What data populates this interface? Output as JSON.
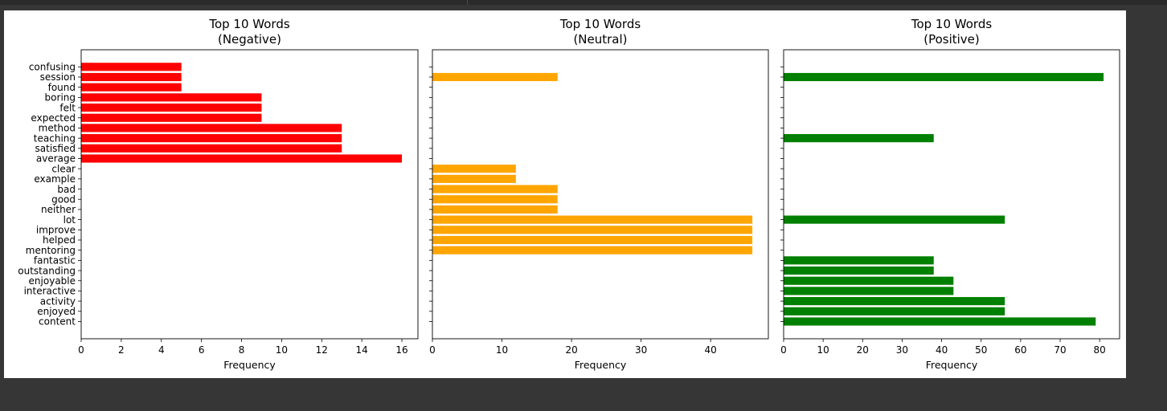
{
  "chart_data": [
    {
      "type": "bar",
      "orientation": "horizontal",
      "title": "Top 10 Words\n(Negative)",
      "xlabel": "Frequency",
      "color": "#ff0000",
      "xlim": [
        0,
        16.8
      ],
      "xticks": [
        0,
        2,
        4,
        6,
        8,
        10,
        12,
        14,
        16
      ],
      "categories": [
        "content",
        "enjoyed",
        "activity",
        "interactive",
        "enjoyable",
        "outstanding",
        "fantastic",
        "mentoring",
        "helped",
        "improve",
        "lot",
        "neither",
        "good",
        "bad",
        "example",
        "clear",
        "average",
        "satisfied",
        "teaching",
        "method",
        "expected",
        "felt",
        "boring",
        "found",
        "session",
        "confusing"
      ],
      "values": [
        0,
        0,
        0,
        0,
        0,
        0,
        0,
        0,
        0,
        0,
        0,
        0,
        0,
        0,
        0,
        0,
        16,
        13,
        13,
        13,
        9,
        9,
        9,
        5,
        5,
        5
      ]
    },
    {
      "type": "bar",
      "orientation": "horizontal",
      "title": "Top 10 Words\n(Neutral)",
      "xlabel": "Frequency",
      "color": "#ffa500",
      "xlim": [
        0,
        48.3
      ],
      "xticks": [
        0,
        10,
        20,
        30,
        40
      ],
      "categories": [
        "content",
        "enjoyed",
        "activity",
        "interactive",
        "enjoyable",
        "outstanding",
        "fantastic",
        "mentoring",
        "helped",
        "improve",
        "lot",
        "neither",
        "good",
        "bad",
        "example",
        "clear",
        "average",
        "satisfied",
        "teaching",
        "method",
        "expected",
        "felt",
        "boring",
        "found",
        "session",
        "confusing"
      ],
      "values": [
        0,
        0,
        0,
        0,
        0,
        0,
        0,
        46,
        46,
        46,
        46,
        18,
        18,
        18,
        12,
        12,
        0,
        0,
        0,
        0,
        0,
        0,
        0,
        0,
        18,
        0
      ]
    },
    {
      "type": "bar",
      "orientation": "horizontal",
      "title": "Top 10 Words\n(Positive)",
      "xlabel": "Frequency",
      "color": "#008000",
      "xlim": [
        0,
        85.05
      ],
      "xticks": [
        0,
        10,
        20,
        30,
        40,
        50,
        60,
        70,
        80
      ],
      "categories": [
        "content",
        "enjoyed",
        "activity",
        "interactive",
        "enjoyable",
        "outstanding",
        "fantastic",
        "mentoring",
        "helped",
        "improve",
        "lot",
        "neither",
        "good",
        "bad",
        "example",
        "clear",
        "average",
        "satisfied",
        "teaching",
        "method",
        "expected",
        "felt",
        "boring",
        "found",
        "session",
        "confusing"
      ],
      "values": [
        79,
        56,
        56,
        43,
        43,
        38,
        38,
        0,
        0,
        0,
        56,
        0,
        0,
        0,
        0,
        0,
        0,
        0,
        38,
        0,
        0,
        0,
        0,
        0,
        81,
        0
      ]
    }
  ]
}
